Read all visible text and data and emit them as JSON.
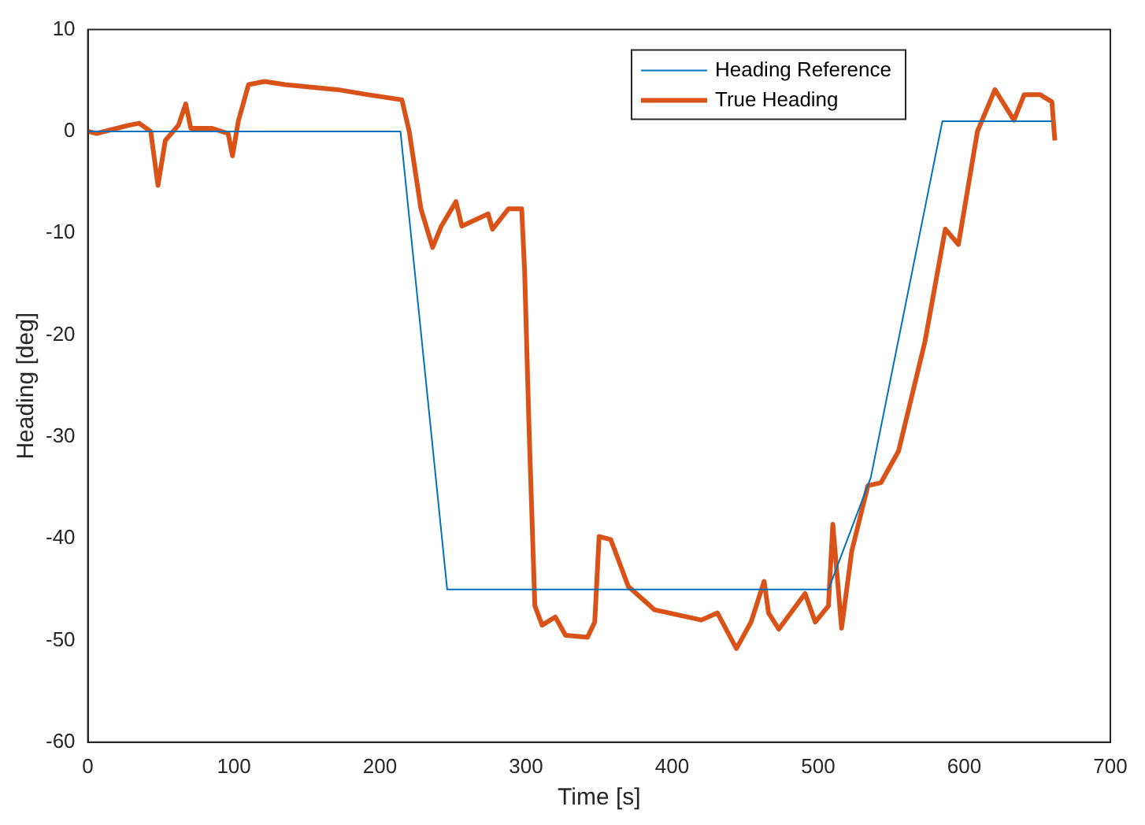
{
  "chart_data": {
    "type": "line",
    "xlabel": "Time [s]",
    "ylabel": "Heading [deg]",
    "xlim": [
      0,
      700
    ],
    "ylim": [
      -60,
      10
    ],
    "xticks": [
      0,
      100,
      200,
      300,
      400,
      500,
      600,
      700
    ],
    "yticks": [
      -60,
      -50,
      -40,
      -30,
      -20,
      -10,
      0,
      10
    ],
    "grid": false,
    "legend": "top right",
    "marker": "none",
    "line_style": "solid",
    "series": [
      {
        "name": "Heading Reference",
        "color": "#0072bd",
        "x": [
          0,
          214,
          246,
          507,
          536,
          585,
          660
        ],
        "values": [
          0,
          0,
          -45,
          -45,
          -34,
          1,
          1
        ]
      },
      {
        "name": "True Heading",
        "color": "#d95319",
        "x": [
          0,
          6,
          28,
          35,
          43,
          48,
          53,
          62,
          67,
          70.5,
          85,
          96,
          99,
          103,
          110,
          121,
          135,
          171,
          192,
          215,
          220,
          228,
          236,
          242,
          252,
          256,
          274,
          277,
          288,
          297,
          299,
          302,
          306,
          311,
          320,
          327,
          342,
          347,
          350,
          358,
          370,
          388,
          420,
          431,
          444,
          454,
          463,
          466,
          473,
          491,
          498,
          507,
          510,
          516,
          523,
          534,
          543,
          555,
          573,
          587,
          596,
          609,
          621,
          634,
          641,
          652,
          660,
          662
        ],
        "values": [
          0,
          -0.2,
          0.6,
          0.8,
          0,
          -5.3,
          -0.9,
          0.6,
          2.7,
          0.3,
          0.3,
          -0.2,
          -2.4,
          1,
          4.6,
          4.9,
          4.6,
          4.1,
          3.6,
          3.1,
          0,
          -7.6,
          -11.4,
          -9.3,
          -6.9,
          -9.3,
          -8.1,
          -9.6,
          -7.6,
          -7.6,
          -13.7,
          -29,
          -46.6,
          -48.5,
          -47.7,
          -49.5,
          -49.7,
          -48.2,
          -39.8,
          -40.1,
          -44.7,
          -47,
          -48,
          -47.3,
          -50.8,
          -48.2,
          -44.2,
          -47.3,
          -48.9,
          -45.4,
          -48.2,
          -46.6,
          -38.6,
          -48.8,
          -41.2,
          -34.8,
          -34.5,
          -31.4,
          -20.7,
          -9.6,
          -11.1,
          0,
          4.1,
          1.1,
          3.6,
          3.6,
          2.9,
          -0.9
        ]
      }
    ]
  }
}
